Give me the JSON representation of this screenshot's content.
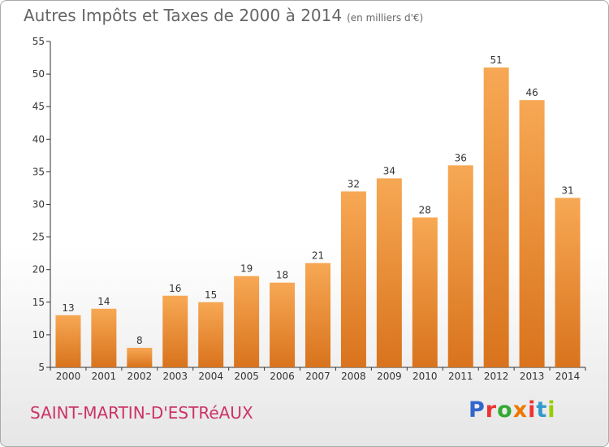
{
  "header": {
    "title": "Autres Impôts et Taxes de 2000 à 2014",
    "unit": "(en milliers d'€)"
  },
  "footer": {
    "town": "SAINT-MARTIN-D'ESTRéAUX",
    "logo": "Proxiti",
    "logo_colors": [
      "#3366cc",
      "#ee3333",
      "#33aa33",
      "#ee7700",
      "#ee3333",
      "#3399cc",
      "#99cc00"
    ]
  },
  "colors": {
    "bar_light": "#f7a854",
    "bar_dark": "#d9731d",
    "axis": "#333333",
    "text": "#333333",
    "town": "#cc3366"
  },
  "chart_data": {
    "type": "bar",
    "title": "Autres Impôts et Taxes de 2000 à 2014",
    "subtitle": "(en milliers d'€)",
    "xlabel": "",
    "ylabel": "",
    "categories": [
      "2000",
      "2001",
      "2002",
      "2003",
      "2004",
      "2005",
      "2006",
      "2007",
      "2008",
      "2009",
      "2010",
      "2011",
      "2012",
      "2013",
      "2014"
    ],
    "values": [
      13,
      14,
      8,
      16,
      15,
      19,
      18,
      21,
      32,
      34,
      28,
      36,
      51,
      46,
      31
    ],
    "ylim": [
      5,
      55
    ],
    "yticks": [
      5,
      10,
      15,
      20,
      25,
      30,
      35,
      40,
      45,
      50,
      55
    ],
    "grid": false,
    "legend": "none"
  }
}
